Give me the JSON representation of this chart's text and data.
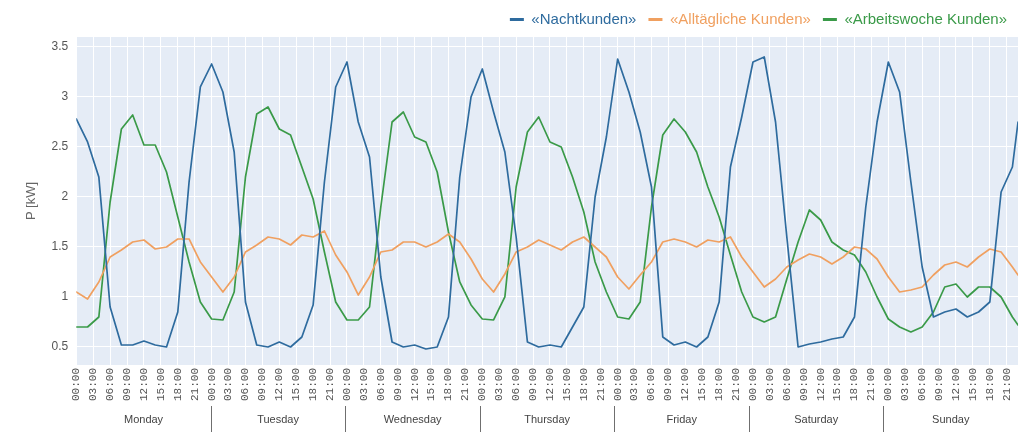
{
  "chart_data": {
    "type": "line",
    "ylabel": "P [kW]",
    "x": [
      "--01-01T00:00",
      "--01-01T02:00",
      "--01-01T04:00",
      "--01-01T06:00",
      "--01-01T08:00",
      "--01-01T10:00",
      "--01-01T12:00",
      "--01-01T14:00",
      "--01-01T16:00",
      "--01-01T18:00",
      "--01-01T20:00",
      "--01-01T22:00",
      "--01-02T00:00",
      "--01-02T02:00",
      "--01-02T04:00",
      "--01-02T06:00",
      "--01-02T08:00",
      "--01-02T10:00",
      "--01-02T12:00",
      "--01-02T14:00",
      "--01-02T16:00",
      "--01-02T18:00",
      "--01-02T20:00",
      "--01-02T22:00",
      "--01-03T00:00",
      "--01-03T02:00",
      "--01-03T04:00",
      "--01-03T06:00",
      "--01-03T08:00",
      "--01-03T10:00",
      "--01-03T12:00",
      "--01-03T14:00",
      "--01-03T16:00",
      "--01-03T18:00",
      "--01-03T20:00",
      "--01-03T22:00",
      "--01-04T00:00",
      "--01-04T02:00",
      "--01-04T04:00",
      "--01-04T06:00",
      "--01-04T08:00",
      "--01-04T10:00",
      "--01-04T12:00",
      "--01-04T14:00",
      "--01-04T16:00",
      "--01-04T18:00",
      "--01-04T20:00",
      "--01-04T22:00",
      "--01-05T00:00",
      "--01-05T02:00",
      "--01-05T04:00",
      "--01-05T06:00",
      "--01-05T08:00",
      "--01-05T10:00",
      "--01-05T12:00",
      "--01-05T14:00",
      "--01-05T16:00",
      "--01-05T18:00",
      "--01-05T20:00",
      "--01-05T22:00",
      "--01-06T00:00",
      "--01-06T02:00",
      "--01-06T04:00",
      "--01-06T06:00",
      "--01-06T08:00",
      "--01-06T10:00",
      "--01-06T12:00",
      "--01-06T14:00",
      "--01-06T16:00",
      "--01-06T18:00",
      "--01-06T20:00",
      "--01-06T22:00",
      "--01-07T00:00",
      "--01-07T02:00",
      "--01-07T04:00",
      "--01-07T06:00",
      "--01-07T08:00",
      "--01-07T10:00",
      "--01-07T12:00",
      "--01-07T14:00",
      "--01-07T16:00",
      "--01-07T18:00",
      "--01-07T20:00",
      "--01-07T22:00",
      "--01-07T23:00"
    ],
    "series": [
      {
        "name": "«Nachtkunden»",
        "color": "#2e6b9e",
        "values": [
          2.78,
          2.55,
          2.2,
          0.9,
          0.52,
          0.52,
          0.56,
          0.52,
          0.5,
          0.85,
          2.15,
          3.1,
          3.33,
          3.05,
          2.45,
          0.95,
          0.52,
          0.5,
          0.55,
          0.5,
          0.6,
          0.92,
          2.15,
          3.1,
          3.35,
          2.75,
          2.4,
          1.2,
          0.55,
          0.5,
          0.52,
          0.48,
          0.5,
          0.8,
          2.2,
          3.0,
          3.28,
          2.85,
          2.45,
          1.6,
          0.55,
          0.5,
          0.52,
          0.5,
          0.7,
          0.9,
          2.0,
          2.6,
          3.38,
          3.05,
          2.65,
          2.1,
          0.6,
          0.52,
          0.55,
          0.5,
          0.6,
          0.95,
          2.3,
          2.8,
          3.35,
          3.4,
          2.75,
          1.6,
          0.5,
          0.53,
          0.55,
          0.58,
          0.6,
          0.8,
          1.9,
          2.75,
          3.35,
          3.05,
          2.15,
          1.3,
          0.8,
          0.85,
          0.88,
          0.8,
          0.85,
          0.95,
          2.05,
          2.3,
          2.75
        ]
      },
      {
        "name": "«Alltägliche Kunden»",
        "color": "#f0a060",
        "values": [
          1.05,
          0.98,
          1.15,
          1.4,
          1.47,
          1.55,
          1.57,
          1.48,
          1.5,
          1.58,
          1.58,
          1.35,
          1.2,
          1.05,
          1.2,
          1.45,
          1.52,
          1.6,
          1.58,
          1.52,
          1.62,
          1.6,
          1.66,
          1.42,
          1.25,
          1.02,
          1.2,
          1.45,
          1.47,
          1.55,
          1.55,
          1.5,
          1.55,
          1.63,
          1.55,
          1.38,
          1.18,
          1.05,
          1.23,
          1.45,
          1.5,
          1.57,
          1.52,
          1.47,
          1.55,
          1.6,
          1.5,
          1.4,
          1.2,
          1.08,
          1.22,
          1.35,
          1.55,
          1.58,
          1.55,
          1.5,
          1.57,
          1.55,
          1.6,
          1.4,
          1.25,
          1.1,
          1.18,
          1.3,
          1.37,
          1.43,
          1.4,
          1.33,
          1.4,
          1.5,
          1.48,
          1.38,
          1.2,
          1.05,
          1.07,
          1.1,
          1.22,
          1.32,
          1.35,
          1.3,
          1.4,
          1.48,
          1.45,
          1.3,
          1.22
        ]
      },
      {
        "name": "«Arbeitswoche Kunden»",
        "color": "#3a9a48",
        "values": [
          0.7,
          0.7,
          0.8,
          1.95,
          2.68,
          2.82,
          2.52,
          2.52,
          2.25,
          1.8,
          1.35,
          0.95,
          0.78,
          0.77,
          1.05,
          2.2,
          2.83,
          2.9,
          2.68,
          2.62,
          2.3,
          1.98,
          1.45,
          0.95,
          0.77,
          0.77,
          0.9,
          1.9,
          2.75,
          2.85,
          2.6,
          2.55,
          2.25,
          1.65,
          1.15,
          0.92,
          0.78,
          0.77,
          1.0,
          2.1,
          2.65,
          2.8,
          2.55,
          2.5,
          2.2,
          1.85,
          1.35,
          1.05,
          0.8,
          0.78,
          0.95,
          1.9,
          2.62,
          2.78,
          2.65,
          2.45,
          2.1,
          1.8,
          1.42,
          1.05,
          0.8,
          0.75,
          0.8,
          1.18,
          1.55,
          1.87,
          1.77,
          1.55,
          1.47,
          1.42,
          1.25,
          1.0,
          0.78,
          0.7,
          0.65,
          0.7,
          0.85,
          1.1,
          1.13,
          1.0,
          1.1,
          1.1,
          1.0,
          0.8,
          0.72
        ]
      }
    ],
    "xlim": [
      "--01-01T00:00",
      "--01-07T23:00"
    ],
    "xticks": [
      {
        "value": "--01-01T00:00",
        "label": "00:00"
      },
      {
        "value": "--01-01T03:00",
        "label": "03:00"
      },
      {
        "value": "--01-01T06:00",
        "label": "06:00"
      },
      {
        "value": "--01-01T09:00",
        "label": "09:00"
      },
      {
        "value": "--01-01T12:00",
        "label": "12:00"
      },
      {
        "value": "--01-01T15:00",
        "label": "15:00"
      },
      {
        "value": "--01-01T18:00",
        "label": "18:00"
      },
      {
        "value": "--01-01T21:00",
        "label": "21:00"
      },
      {
        "value": "--01-02T00:00",
        "label": "00:00"
      },
      {
        "value": "--01-02T03:00",
        "label": "03:00"
      },
      {
        "value": "--01-02T06:00",
        "label": "06:00"
      },
      {
        "value": "--01-02T09:00",
        "label": "09:00"
      },
      {
        "value": "--01-02T12:00",
        "label": "12:00"
      },
      {
        "value": "--01-02T15:00",
        "label": "15:00"
      },
      {
        "value": "--01-02T18:00",
        "label": "18:00"
      },
      {
        "value": "--01-02T21:00",
        "label": "21:00"
      },
      {
        "value": "--01-03T00:00",
        "label": "00:00"
      },
      {
        "value": "--01-03T03:00",
        "label": "03:00"
      },
      {
        "value": "--01-03T06:00",
        "label": "06:00"
      },
      {
        "value": "--01-03T09:00",
        "label": "09:00"
      },
      {
        "value": "--01-03T12:00",
        "label": "12:00"
      },
      {
        "value": "--01-03T15:00",
        "label": "15:00"
      },
      {
        "value": "--01-03T18:00",
        "label": "18:00"
      },
      {
        "value": "--01-03T21:00",
        "label": "21:00"
      },
      {
        "value": "--01-04T00:00",
        "label": "00:00"
      },
      {
        "value": "--01-04T03:00",
        "label": "03:00"
      },
      {
        "value": "--01-04T06:00",
        "label": "06:00"
      },
      {
        "value": "--01-04T09:00",
        "label": "09:00"
      },
      {
        "value": "--01-04T12:00",
        "label": "12:00"
      },
      {
        "value": "--01-04T15:00",
        "label": "15:00"
      },
      {
        "value": "--01-04T18:00",
        "label": "18:00"
      },
      {
        "value": "--01-04T21:00",
        "label": "21:00"
      },
      {
        "value": "--01-05T00:00",
        "label": "00:00"
      },
      {
        "value": "--01-05T03:00",
        "label": "03:00"
      },
      {
        "value": "--01-05T06:00",
        "label": "06:00"
      },
      {
        "value": "--01-05T09:00",
        "label": "09:00"
      },
      {
        "value": "--01-05T12:00",
        "label": "12:00"
      },
      {
        "value": "--01-05T15:00",
        "label": "15:00"
      },
      {
        "value": "--01-05T18:00",
        "label": "18:00"
      },
      {
        "value": "--01-05T21:00",
        "label": "21:00"
      },
      {
        "value": "--01-06T00:00",
        "label": "00:00"
      },
      {
        "value": "--01-06T03:00",
        "label": "03:00"
      },
      {
        "value": "--01-06T06:00",
        "label": "06:00"
      },
      {
        "value": "--01-06T09:00",
        "label": "09:00"
      },
      {
        "value": "--01-06T12:00",
        "label": "12:00"
      },
      {
        "value": "--01-06T15:00",
        "label": "15:00"
      },
      {
        "value": "--01-06T18:00",
        "label": "18:00"
      },
      {
        "value": "--01-06T21:00",
        "label": "21:00"
      },
      {
        "value": "--01-07T00:00",
        "label": "00:00"
      },
      {
        "value": "--01-07T03:00",
        "label": "03:00"
      },
      {
        "value": "--01-07T06:00",
        "label": "06:00"
      },
      {
        "value": "--01-07T09:00",
        "label": "09:00"
      },
      {
        "value": "--01-07T12:00",
        "label": "12:00"
      },
      {
        "value": "--01-07T15:00",
        "label": "15:00"
      },
      {
        "value": "--01-07T18:00",
        "label": "18:00"
      },
      {
        "value": "--01-07T21:00",
        "label": "21:00"
      }
    ],
    "annotations": [
      "Monday",
      "Tuesday",
      "Wednesday",
      "Thursday",
      "Friday",
      "Saturday",
      "Sunday"
    ],
    "ylim": [
      0.32,
      3.6
    ],
    "yticks": [
      0.5,
      1,
      1.5,
      2,
      2.5,
      3,
      3.5
    ],
    "grid": true,
    "legend": "top right"
  }
}
